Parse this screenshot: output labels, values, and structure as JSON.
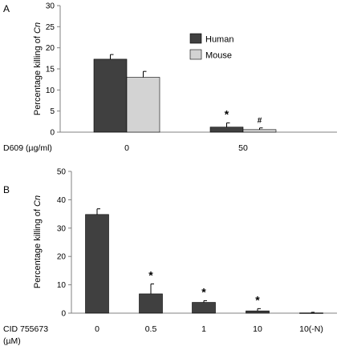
{
  "colors": {
    "human": "#404040",
    "mouse": "#d3d3d3",
    "single": "#404040",
    "axis": "#808080"
  },
  "chart_data": [
    {
      "type": "bar",
      "panel_label": "A",
      "ylabel": "Percentage killing of Cn",
      "ylim": [
        0,
        30
      ],
      "yticks": [
        0,
        5,
        10,
        15,
        20,
        25,
        30
      ],
      "xlabel": "D609 (µg/ml)",
      "categories": [
        "0",
        "50"
      ],
      "series": [
        {
          "name": "Human",
          "color": "#404040",
          "values": [
            17.3,
            1.2
          ],
          "errors": [
            1.1,
            1.0
          ],
          "markers": [
            "",
            "*"
          ]
        },
        {
          "name": "Mouse",
          "color": "#d3d3d3",
          "values": [
            13.0,
            0.6
          ],
          "errors": [
            1.4,
            0.4
          ],
          "markers": [
            "",
            "#"
          ]
        }
      ],
      "legend": "top-right",
      "grid": false
    },
    {
      "type": "bar",
      "panel_label": "B",
      "ylabel": "Percentage killing of Cn",
      "ylim": [
        0,
        50
      ],
      "yticks": [
        0,
        10,
        20,
        30,
        40,
        50
      ],
      "xlabel_lines": [
        "CID 755673",
        "(µM)"
      ],
      "categories": [
        "0",
        "0.5",
        "1",
        "10",
        "10(-N)"
      ],
      "series": [
        {
          "color": "#404040",
          "values": [
            34.8,
            6.8,
            3.8,
            0.8,
            0.1
          ],
          "errors": [
            2.0,
            3.5,
            0.6,
            0.8,
            0.2
          ],
          "markers": [
            "",
            "*",
            "*",
            "*",
            ""
          ]
        }
      ],
      "grid": false
    }
  ]
}
